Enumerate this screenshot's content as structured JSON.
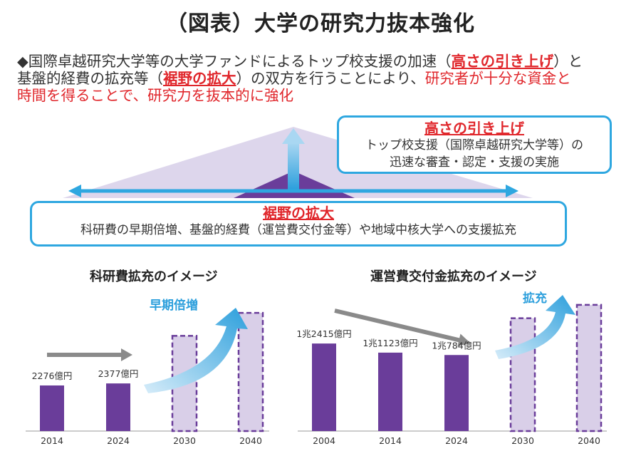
{
  "title": "（図表）大学の研究力抜本強化",
  "intro": {
    "bullet": "◆",
    "l1a": "国際卓越研究大学等の大学ファンドによるトップ校支援の加速（",
    "l1b": "高さの引き上げ",
    "l1c": "）と",
    "l2a": "基盤的経費の拡充等（",
    "l2b": "裾野の拡大",
    "l2c": "）の双方を行うことにより、",
    "l2d": "研究者が十分な資金と",
    "l3": "時間を得ることで、研究力を抜本的に強化"
  },
  "callout_top": {
    "title": "高さの引き上げ",
    "line1": "トップ校支援（国際卓越研究大学等）の",
    "line2": "迅速な審査・認定・支援の実施"
  },
  "callout_bottom": {
    "title": "裾野の拡大",
    "line1": "科研費の早期倍増、基盤的経費（運営費交付金等）や地域中核大学への支援拡充"
  },
  "colors": {
    "bar_solid": "#6a3d9a",
    "bar_projected_fill": "#d9cfe8",
    "bar_projected_border": "#6a3d9a",
    "accent": "#2c9fdc",
    "red": "#e0262b",
    "gray_arrow": "#8a8a8a"
  },
  "chart_data": [
    {
      "type": "bar",
      "title": "科研費拡充のイメージ",
      "categories": [
        "2014",
        "2024",
        "2030",
        "2040"
      ],
      "values": [
        2276,
        2377,
        4750,
        5900
      ],
      "projected": [
        false,
        false,
        true,
        true
      ],
      "data_labels": [
        "2276億円",
        "2377億円",
        "",
        ""
      ],
      "annotation": "早期倍増",
      "unit": "億円",
      "ylim": [
        0,
        6400
      ]
    },
    {
      "type": "bar",
      "title": "運営費交付金拡充のイメージ",
      "categories": [
        "2004",
        "2014",
        "2024",
        "2030",
        "2040"
      ],
      "values": [
        12415,
        11123,
        10784,
        16000,
        17900
      ],
      "projected": [
        false,
        false,
        false,
        true,
        true
      ],
      "data_labels": [
        "1兆2415億円",
        "1兆1123億円",
        "1兆784億円",
        "",
        ""
      ],
      "annotation": "拡充",
      "unit": "億円",
      "ylim": [
        0,
        19500
      ]
    }
  ]
}
